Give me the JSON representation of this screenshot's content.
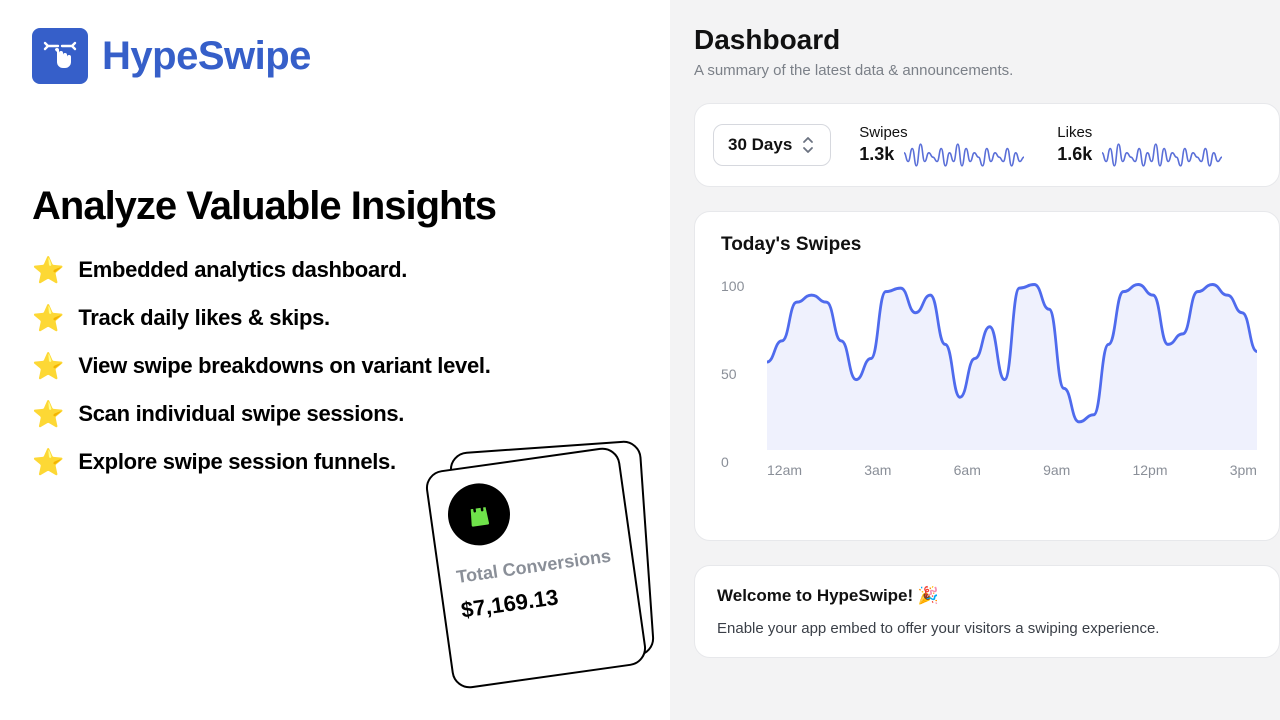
{
  "brand": {
    "name": "HypeSwipe",
    "logo_bg": "#365fc9",
    "logo_fg": "#ffffff"
  },
  "headline": "Analyze Valuable Insights",
  "features": [
    "Embedded analytics dashboard.",
    "Track daily likes & skips.",
    "View swipe breakdowns on variant level.",
    "Scan individual swipe sessions.",
    "Explore swipe session funnels."
  ],
  "feature_bullet": "⭐",
  "conversions_card": {
    "title": "Total Conversions",
    "value": "$7,169.13",
    "icon_bg": "#000000",
    "icon_fg": "#6fe24a",
    "card_bg": "#ffffff",
    "card_border": "#000000"
  },
  "dashboard": {
    "title": "Dashboard",
    "subtitle": "A summary of the latest data & announcements.",
    "range_label": "30 Days",
    "metrics": [
      {
        "label": "Swipes",
        "value": "1.3k"
      },
      {
        "label": "Likes",
        "value": "1.6k"
      }
    ],
    "sparkline": {
      "stroke": "#5a6fd8",
      "stroke_width": 1.6,
      "points": [
        12,
        10,
        13,
        9,
        14,
        10,
        12,
        11,
        10,
        13,
        9,
        12,
        10,
        14,
        9,
        13,
        10,
        12,
        11,
        9,
        13,
        10,
        12,
        11,
        10,
        13,
        9,
        12,
        10,
        11
      ]
    }
  },
  "today_chart": {
    "title": "Today's Swipes",
    "ylim": [
      0,
      100
    ],
    "ytick_labels": [
      "100",
      "50",
      "0"
    ],
    "xtick_labels": [
      "12am",
      "3am",
      "6am",
      "9am",
      "12pm",
      "3pm"
    ],
    "line_color": "#4f6bed",
    "fill_color": "rgba(99,120,237,0.10)",
    "line_width": 3,
    "background": "#ffffff",
    "series": [
      50,
      62,
      84,
      88,
      84,
      62,
      40,
      52,
      90,
      92,
      78,
      88,
      60,
      30,
      52,
      70,
      40,
      92,
      94,
      80,
      35,
      16,
      20,
      60,
      90,
      94,
      88,
      60,
      66,
      90,
      94,
      88,
      78,
      56
    ]
  },
  "welcome": {
    "title": "Welcome to HypeSwipe! 🎉",
    "body": "Enable your app embed to offer your visitors a swiping experience."
  },
  "palette": {
    "page_bg": "#ffffff",
    "panel_bg": "#f3f3f4",
    "card_bg": "#ffffff",
    "card_border": "#e7e8eb",
    "text": "#111111",
    "muted": "#7b8088"
  }
}
